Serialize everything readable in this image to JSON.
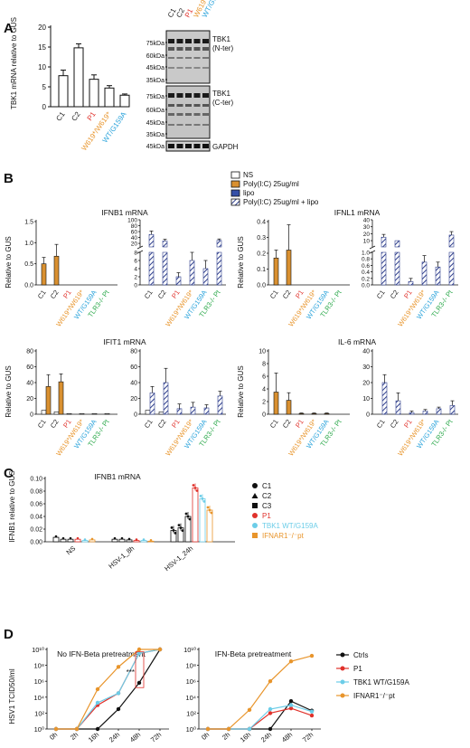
{
  "panels": {
    "A": {
      "label": "A",
      "bar": {
        "ylabel": "TBK1 mRNA relative to GUS",
        "yticks": [
          "0",
          "5",
          "10",
          "15",
          "20"
        ],
        "categories": [
          "C1",
          "C2",
          "P1",
          "W619*/W619*",
          "WT/G159A"
        ],
        "cat_colors": [
          "#222222",
          "#222222",
          "#e0312b",
          "#e8952c",
          "#2aa3db"
        ],
        "values": [
          7.8,
          14.8,
          6.9,
          4.7,
          2.9
        ],
        "errors": [
          1.4,
          1.0,
          1.1,
          0.6,
          0.3
        ],
        "ymax": 20
      },
      "blot": {
        "lanes": [
          "C1",
          "C2",
          "P1",
          "W619*/W619*",
          "WT/G159A"
        ],
        "lane_colors": [
          "#222222",
          "#222222",
          "#e0312b",
          "#e8952c",
          "#2aa3db"
        ],
        "markers_top": [
          "75kDa",
          "60kDa",
          "45kDa",
          "35kDa"
        ],
        "markers_mid": [
          "75kDa",
          "60kDa",
          "45kDa",
          "35kDa"
        ],
        "markers_bot": [
          "45kDa"
        ],
        "labels": [
          "TBK1\n(N-ter)",
          "TBK1\n(C-ter)",
          "GAPDH"
        ]
      }
    },
    "B": {
      "label": "B",
      "legend": [
        "NS",
        "Poly(I:C) 25ug/ml",
        "lipo",
        "Poly(I:C) 25ug/ml + lipo"
      ],
      "legend_colors": [
        "#ffffff",
        "#d99030",
        "#3550a8",
        "hatch"
      ],
      "ylabel": "Relative to GUS",
      "categories": [
        "C1",
        "C2",
        "P1",
        "W619*/W619*",
        "WT/G159A",
        "TLR3-/- Pt"
      ],
      "cat_colors": [
        "#222222",
        "#222222",
        "#e0312b",
        "#e8952c",
        "#2aa3db",
        "#2aa84a"
      ],
      "charts": [
        {
          "title": "IFNB1 mRNA",
          "left_ticks": [
            "0.0",
            "0.5",
            "1.0",
            "1.5"
          ],
          "left_max": 1.5,
          "poly": [
            0.5,
            0.68,
            0,
            0,
            0,
            0
          ],
          "poly_err": [
            0.15,
            0.28,
            0,
            0,
            0,
            0
          ],
          "right_top_ticks": [
            "20",
            "40",
            "60",
            "80",
            "100"
          ],
          "right_low_ticks": [
            "0",
            "2",
            "4",
            "6",
            "8"
          ],
          "lipo": [
            50,
            28,
            2,
            6,
            4,
            30
          ],
          "lipo_err": [
            12,
            6,
            1,
            2,
            2,
            5
          ]
        },
        {
          "title": "IFNL1 mRNA",
          "left_ticks": [
            "0.0",
            "0.1",
            "0.2",
            "0.3",
            "0.4"
          ],
          "left_max": 0.4,
          "poly": [
            0.17,
            0.22,
            0,
            0,
            0,
            0
          ],
          "poly_err": [
            0.05,
            0.16,
            0,
            0,
            0,
            0
          ],
          "right_top_ticks": [
            "10",
            "20",
            "30",
            "40"
          ],
          "right_low_ticks": [
            "0.0",
            "0.2",
            "0.4",
            "0.6",
            "0.8",
            "1.0"
          ],
          "lipo": [
            15,
            10,
            0.1,
            0.7,
            0.55,
            18
          ],
          "lipo_err": [
            4,
            0,
            0.1,
            0.2,
            0.15,
            5
          ]
        },
        {
          "title": "IFIT1 mRNA",
          "left_ticks": [
            "0",
            "20",
            "40",
            "60",
            "80"
          ],
          "left_max": 80,
          "ns": [
            5,
            3,
            0,
            0,
            0,
            0
          ],
          "poly": [
            35,
            41,
            0,
            0,
            0,
            0
          ],
          "poly_err": [
            15,
            10,
            0,
            0,
            0,
            0
          ],
          "right_ticks": [
            "0",
            "20",
            "40",
            "60",
            "80"
          ],
          "right_max": 80,
          "right_ns": [
            5,
            3,
            0,
            0,
            0,
            0
          ],
          "lipo": [
            27,
            40,
            7,
            9,
            8,
            23
          ],
          "lipo_err": [
            8,
            18,
            6,
            6,
            4,
            6
          ]
        },
        {
          "title": "IL-6 mRNA",
          "left_ticks": [
            "0",
            "2",
            "4",
            "6",
            "8",
            "10"
          ],
          "left_max": 10,
          "poly": [
            3.5,
            2.2,
            0.1,
            0.1,
            0.1,
            0
          ],
          "poly_err": [
            3,
            1.2,
            0.1,
            0.1,
            0.1,
            0
          ],
          "right_ticks": [
            "0",
            "10",
            "20",
            "30",
            "40"
          ],
          "right_max": 40,
          "lipo": [
            20,
            8.5,
            1,
            2,
            3.5,
            5.5
          ],
          "lipo_err": [
            5,
            5,
            1,
            1,
            1,
            3
          ]
        }
      ]
    },
    "C": {
      "label": "C",
      "title": "IFNB1 mRNA",
      "ylabel": "IFNB1 relative to GUS",
      "yticks": [
        "0.00",
        "0.02",
        "0.04",
        "0.06",
        "0.08",
        "0.10"
      ],
      "ymax": 0.1,
      "groups": [
        "NS",
        "HSV-1_8h",
        "HSV-1_24h"
      ],
      "series": [
        {
          "name": "C1",
          "color": "#111111",
          "marker": "circle",
          "values": [
            0.007,
            0.004,
            0.018
          ]
        },
        {
          "name": "C2",
          "color": "#111111",
          "marker": "triangle",
          "values": [
            0.004,
            0.004,
            0.022
          ]
        },
        {
          "name": "C3",
          "color": "#111111",
          "marker": "square",
          "values": [
            0.004,
            0.003,
            0.04
          ]
        },
        {
          "name": "P1",
          "color": "#e0312b",
          "marker": "circle",
          "values": [
            0.004,
            0.002,
            0.085
          ]
        },
        {
          "name": "TBK1 WT/G159A",
          "color": "#6ccde8",
          "marker": "circle",
          "values": [
            0.002,
            0.002,
            0.068
          ]
        },
        {
          "name": "IFNAR1⁻/⁻pt",
          "color": "#e8952c",
          "marker": "square",
          "values": [
            0.003,
            0.001,
            0.05
          ]
        }
      ]
    },
    "D": {
      "label": "D",
      "ylabel": "HSV1 TCID50/ml",
      "yticks": [
        "10⁰",
        "10²",
        "10⁴",
        "10⁶",
        "10⁸",
        "10¹⁰"
      ],
      "xticks": [
        "0h",
        "2h",
        "16h",
        "24h",
        "48h",
        "72h"
      ],
      "stat": "***",
      "charts": [
        {
          "title": "No IFN-Beta pretreatment",
          "series": [
            {
              "name": "Ctrls",
              "color": "#111111",
              "values": [
                0,
                0,
                0,
                2.5,
                5.8,
                10
              ]
            },
            {
              "name": "P1",
              "color": "#e0312b",
              "values": [
                0,
                0,
                3,
                4.5,
                9.5,
                10
              ]
            },
            {
              "name": "TBK1 WT/G159A",
              "color": "#6ccde8",
              "values": [
                0,
                0,
                3.3,
                4.5,
                9.5,
                10
              ]
            },
            {
              "name": "IFNAR1⁻/⁻pt",
              "color": "#e8952c",
              "values": [
                0,
                0,
                5,
                7.8,
                10,
                10
              ]
            }
          ]
        },
        {
          "title": "IFN-Beta pretreatment",
          "series": [
            {
              "name": "Ctrls",
              "color": "#111111",
              "values": [
                0,
                0,
                0,
                0,
                3.5,
                2.3
              ]
            },
            {
              "name": "P1",
              "color": "#e0312b",
              "values": [
                0,
                0,
                0,
                2,
                2.6,
                1.7
              ]
            },
            {
              "name": "TBK1 WT/G159A",
              "color": "#6ccde8",
              "values": [
                0,
                0,
                0,
                2.5,
                3,
                2.2
              ]
            },
            {
              "name": "IFNAR1⁻/⁻pt",
              "color": "#e8952c",
              "values": [
                0,
                0,
                2.4,
                6,
                8.5,
                9.2
              ]
            }
          ]
        }
      ],
      "legend": [
        "Ctrls",
        "P1",
        "TBK1 WT/G159A",
        "IFNAR1⁻/⁻pt"
      ],
      "legend_colors": [
        "#111111",
        "#e0312b",
        "#6ccde8",
        "#e8952c"
      ]
    }
  }
}
